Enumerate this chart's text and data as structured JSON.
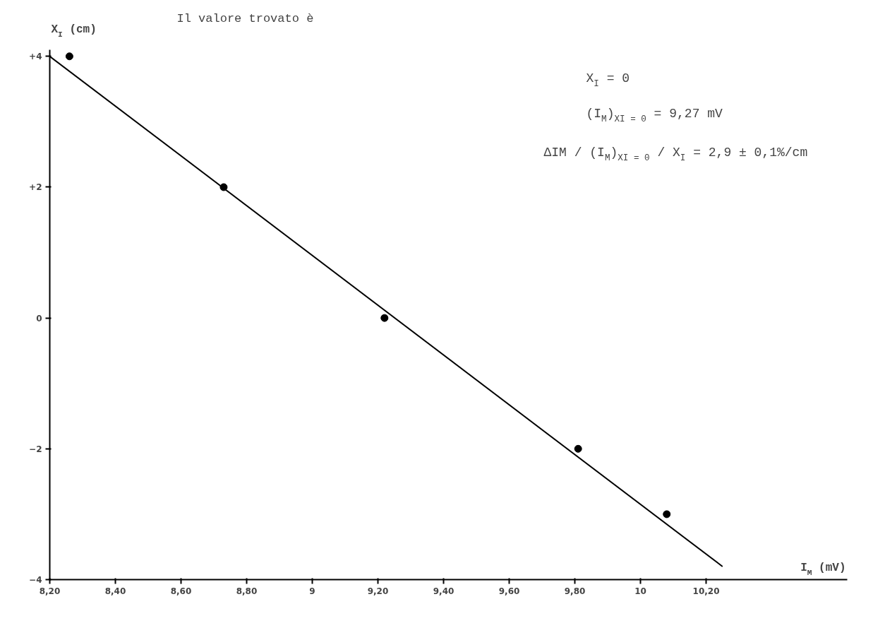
{
  "chart_data": {
    "type": "line",
    "xlabel": "I$_{M}$ (mV)",
    "ylabel": "X$_{I}$ (cm)",
    "annotations": [
      "Il valore trovato è",
      "X$_{I}$ = 0",
      "(I$_{M}$)$_{XI = 0}$ = 9,27 mV",
      "ΔIM / (I$_{M}$)$_{XI = 0}$ / X$_{I}$ = 2,9 ± 0,1%/cm"
    ],
    "series": [
      {
        "type": "scatter",
        "color": "#000000",
        "marker": "circle",
        "x": [
          8.26,
          8.73,
          9.22,
          9.81,
          10.08
        ],
        "values": [
          4,
          2,
          0,
          -2,
          -3
        ]
      },
      {
        "color": "#000000",
        "line_style": "solid",
        "x": [
          8.2,
          10.25
        ],
        "values": [
          4,
          -3.8
        ]
      }
    ],
    "xlim": [
      8.2,
      10.63
    ],
    "ylim": [
      -4,
      4.1
    ],
    "xticks": [
      {
        "value": 8.2,
        "label": "8,20"
      },
      {
        "value": 8.4,
        "label": "8,40"
      },
      {
        "value": 8.6,
        "label": "8,60"
      },
      {
        "value": 8.8,
        "label": "8,80"
      },
      9,
      {
        "value": 9.2,
        "label": "9,20"
      },
      {
        "value": 9.4,
        "label": "9,40"
      },
      {
        "value": 9.6,
        "label": "9,60"
      },
      {
        "value": 9.8,
        "label": "9,80"
      },
      10,
      {
        "value": 10.2,
        "label": "10,20"
      }
    ],
    "yticks": [
      {
        "value": 4,
        "label": "+4"
      },
      {
        "value": 2,
        "label": "+2"
      },
      0,
      -2,
      -4
    ],
    "grid": false
  }
}
